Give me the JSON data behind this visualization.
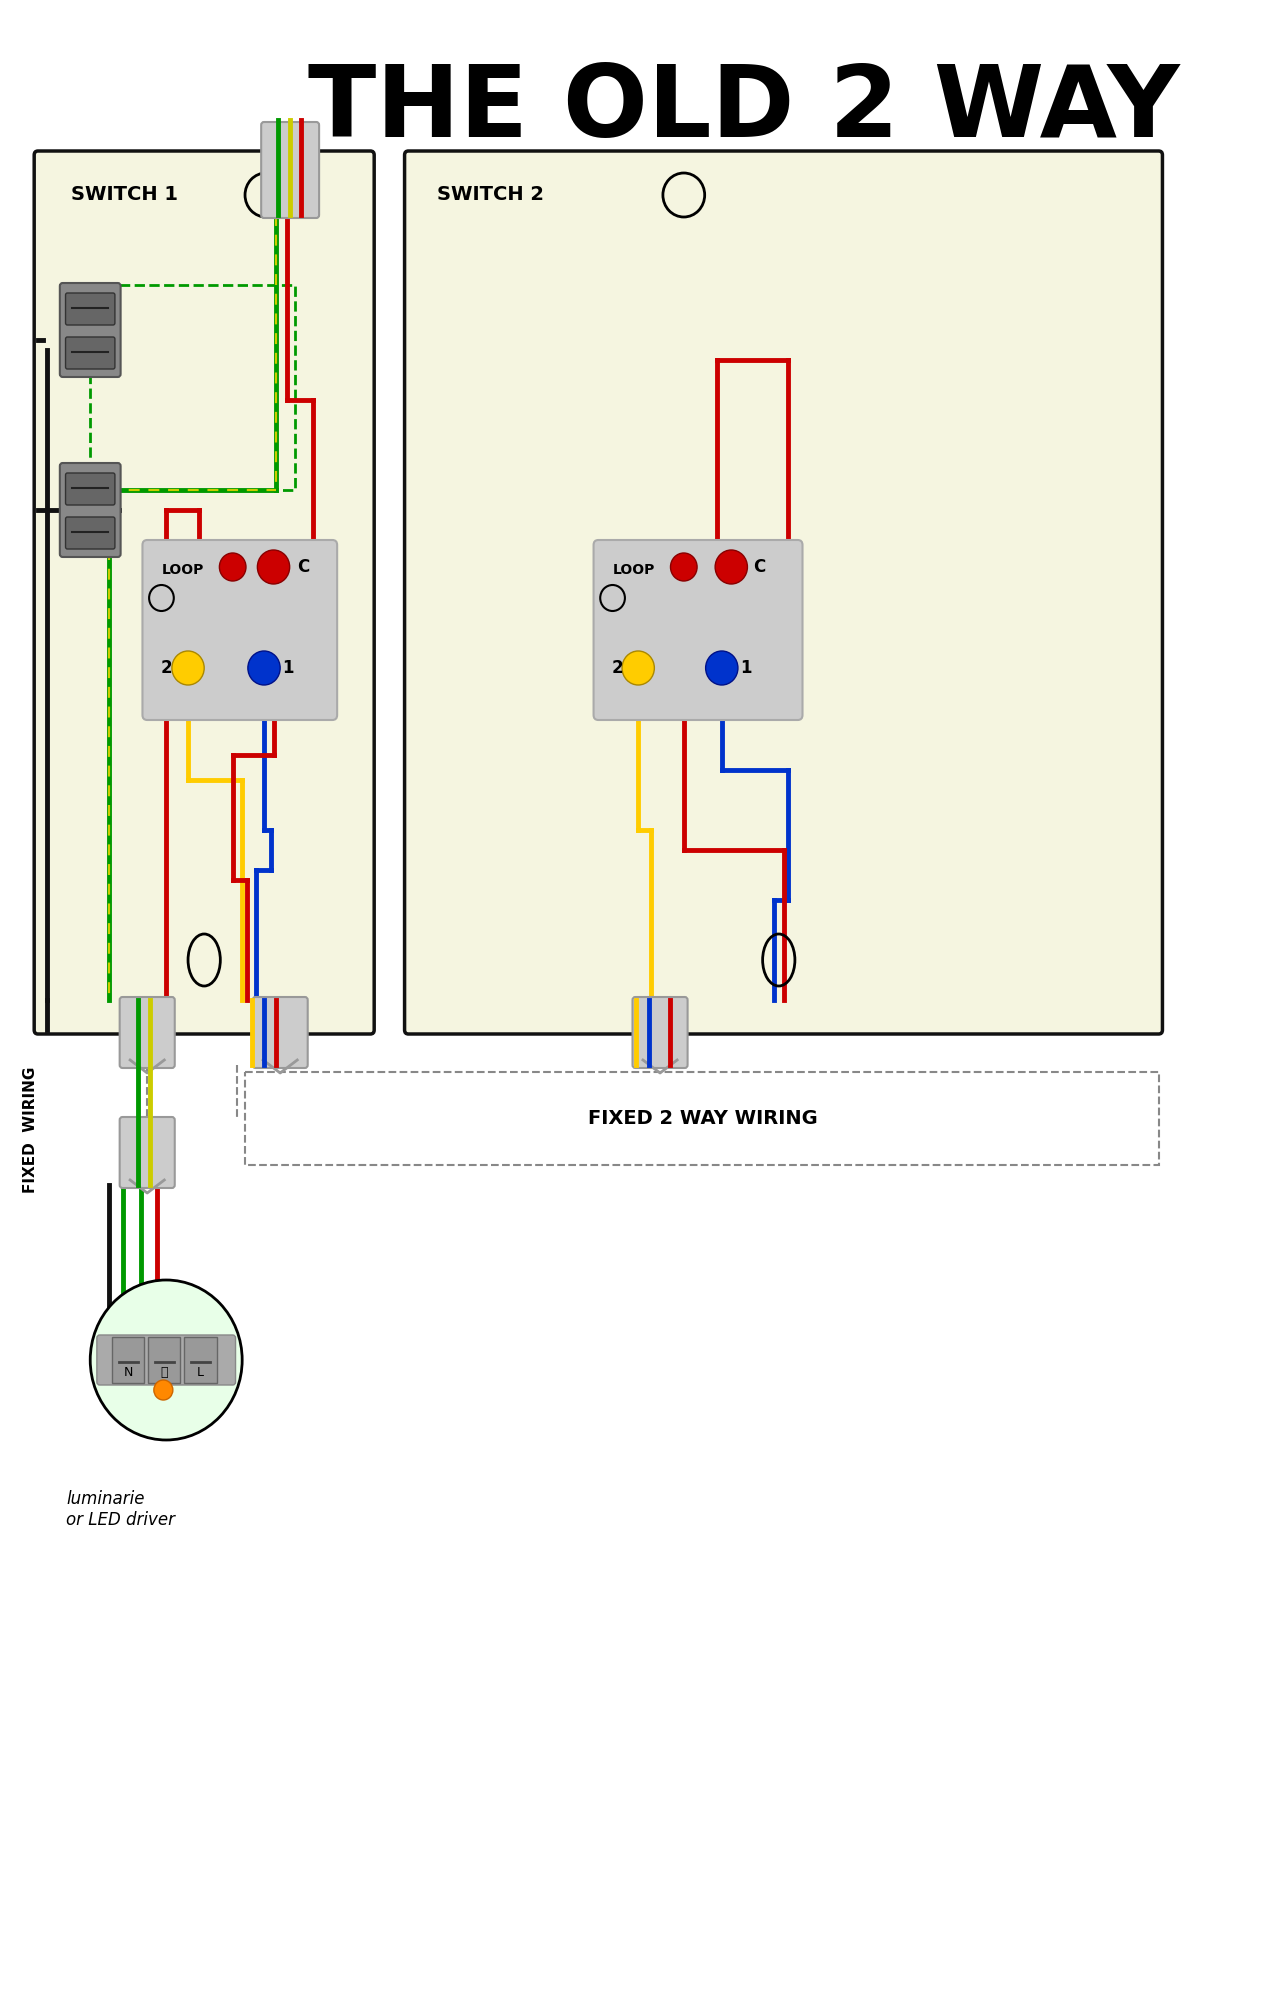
{
  "title": "THE OLD 2 WAY",
  "bg_color": "#ffffff",
  "switch_bg": "#f5f5e0",
  "switch_border": "#111111",
  "fixed_wiring_label": "FIXED  WIRING",
  "fixed_2way_label": "FIXED 2 WAY WIRING",
  "luminarie_label": "luminarie\nor LED driver",
  "switch1_label": "SWITCH 1",
  "switch2_label": "SWITCH 2",
  "loop_label": "LOOP",
  "c_label": "C",
  "n_label": "N",
  "l_label": "L",
  "colors": {
    "red": "#cc0000",
    "green": "#009900",
    "yellow_green": "#cccc00",
    "yellow": "#ffcc00",
    "blue": "#0033cc",
    "black": "#111111",
    "gray_light": "#cccccc",
    "gray_med": "#aaaaaa",
    "gray_dark": "#888888",
    "orange": "#ff8800"
  }
}
